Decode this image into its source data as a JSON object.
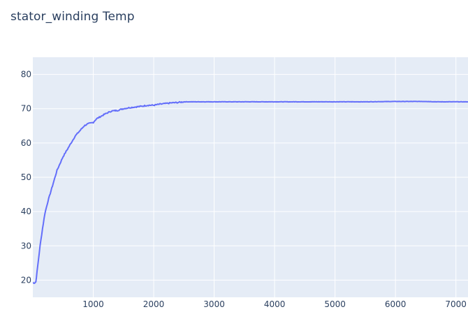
{
  "chart_data": {
    "type": "line",
    "title": "stator_winding Temp",
    "xlabel": "",
    "ylabel": "",
    "xlim": [
      0,
      7200
    ],
    "ylim": [
      15,
      85
    ],
    "xticks": [
      1000,
      2000,
      3000,
      4000,
      5000,
      6000,
      7000
    ],
    "yticks": [
      20,
      30,
      40,
      50,
      60,
      70,
      80
    ],
    "grid": true,
    "colors": {
      "line": "#636efa",
      "plot_bg": "#e5ecf6",
      "grid": "#ffffff",
      "text": "#2a3f5f"
    },
    "series": [
      {
        "x": [
          0,
          30,
          50,
          80,
          120,
          160,
          200,
          250,
          300,
          350,
          400,
          450,
          500,
          550,
          600,
          650,
          700,
          750,
          800,
          850,
          900,
          1000,
          1050,
          1100,
          1200,
          1300,
          1400,
          1500,
          1600,
          1700,
          1800,
          1900,
          2000,
          2100,
          2200,
          2300,
          2400,
          2500,
          2600,
          2700,
          2800,
          2900,
          3000,
          3500,
          4000,
          4500,
          5000,
          5500,
          6000,
          6500,
          6700,
          7000,
          7200
        ],
        "y": [
          19.2,
          19.2,
          19.5,
          24,
          30,
          35,
          39.5,
          43,
          46,
          49,
          52,
          54,
          56,
          57.5,
          59,
          60.5,
          62,
          63,
          64,
          65,
          65.5,
          66,
          67,
          67.5,
          68.5,
          69.3,
          69.5,
          70,
          70.3,
          70.5,
          70.7,
          71,
          71,
          71.3,
          71.5,
          71.7,
          71.8,
          72,
          72,
          72,
          72,
          72,
          72,
          72,
          72,
          72,
          72,
          72,
          72.1,
          72.1,
          72,
          72,
          72
        ]
      }
    ]
  }
}
